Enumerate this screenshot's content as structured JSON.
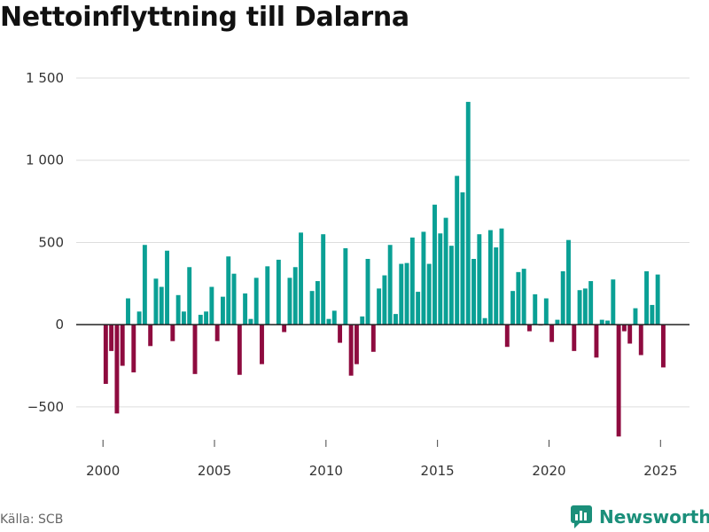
{
  "title": "Nettoinflyttning till Dalarna",
  "source": "Källa: SCB",
  "brand": "Newsworthy",
  "colors": {
    "positive": "#0aa095",
    "negative": "#8e0b3f",
    "grid": "#dddddd",
    "axis": "#222222",
    "brand": "#1b8f7a"
  },
  "chart_data": {
    "type": "bar",
    "title": "Nettoinflyttning till Dalarna",
    "xlabel": "",
    "ylabel": "",
    "ylim": [
      -700,
      1500
    ],
    "xlim": [
      1998.8,
      2026.3
    ],
    "x_ticks": [
      2000,
      2005,
      2010,
      2015,
      2020,
      2025
    ],
    "x_tick_labels": [
      "2000",
      "2005",
      "2010",
      "2015",
      "2020",
      "2025"
    ],
    "y_ticks": [
      -500,
      0,
      500,
      1000,
      1500
    ],
    "y_tick_labels": [
      "−500",
      "0",
      "500",
      "1 000",
      "1 500"
    ],
    "period": "quarterly",
    "start_year": 2000,
    "values": [
      -360,
      -160,
      -540,
      -250,
      160,
      -290,
      80,
      485,
      -130,
      280,
      230,
      450,
      -100,
      180,
      80,
      350,
      -300,
      60,
      80,
      230,
      -100,
      170,
      415,
      310,
      -305,
      190,
      35,
      285,
      -240,
      355,
      0,
      395,
      -45,
      285,
      350,
      560,
      0,
      205,
      265,
      550,
      35,
      85,
      -110,
      465,
      -310,
      -240,
      50,
      400,
      -165,
      220,
      300,
      485,
      65,
      370,
      375,
      530,
      200,
      565,
      370,
      730,
      555,
      650,
      480,
      905,
      805,
      1355,
      400,
      550,
      40,
      575,
      470,
      585,
      -135,
      205,
      320,
      340,
      -40,
      185,
      -5,
      160,
      -105,
      30,
      325,
      515,
      -160,
      210,
      220,
      265,
      -200,
      30,
      25,
      275,
      -680,
      -40,
      -115,
      100,
      -185,
      325,
      120,
      305,
      -260
    ]
  }
}
